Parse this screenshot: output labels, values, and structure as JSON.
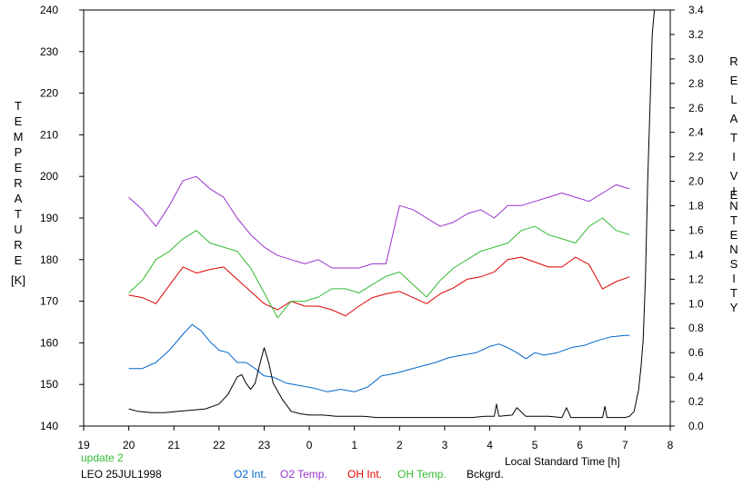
{
  "chart_data": {
    "type": "line",
    "left_axis": {
      "label_letters": [
        "T",
        "E",
        "M",
        "P",
        "E",
        "R",
        "A",
        "T",
        "U",
        "R",
        "E"
      ],
      "unit": "[K]",
      "range": [
        140,
        240
      ],
      "ticks": [
        "240",
        "230",
        "220",
        "210",
        "200",
        "190",
        "180",
        "170",
        "160",
        "150",
        "140"
      ]
    },
    "right_axis": {
      "label1_letters": [
        "R",
        "E",
        "L",
        "A",
        "T",
        "I",
        "V",
        "E"
      ],
      "label2_letters": [
        "I",
        "N",
        "T",
        "E",
        "N",
        "S",
        "I",
        "T",
        "Y"
      ],
      "range": [
        0,
        3.4
      ],
      "ticks": [
        "3.4",
        "3.2",
        "3.0",
        "2.8",
        "2.6",
        "2.4",
        "2.2",
        "2.0",
        "1.8",
        "1.6",
        "1.4",
        "1.2",
        "1.0",
        "0.8",
        "0.6",
        "0.4",
        "0.2",
        "0.0"
      ]
    },
    "x_axis": {
      "label": "Local Standard Time [h]",
      "range": [
        19,
        32
      ],
      "ticks": [
        "19",
        "20",
        "21",
        "22",
        "23",
        "0",
        "1",
        "2",
        "3",
        "4",
        "5",
        "6",
        "7",
        "8"
      ]
    },
    "update_text": "update 2",
    "station_text": "LEO 25JUL1998",
    "series": [
      {
        "name": "O2 Int.",
        "axis": "right",
        "color": "#0066cc",
        "x": [
          20.0,
          20.3,
          20.6,
          20.9,
          21.2,
          21.4,
          21.6,
          21.8,
          22.0,
          22.2,
          22.4,
          22.6,
          22.8,
          23.0,
          23.2,
          23.5,
          23.8,
          24.1,
          24.4,
          24.7,
          25.0,
          25.3,
          25.6,
          25.9,
          26.2,
          26.5,
          26.8,
          27.1,
          27.4,
          27.7,
          28.0,
          28.2,
          28.4,
          28.6,
          28.8,
          29.0,
          29.2,
          29.5,
          29.8,
          30.1,
          30.4,
          30.7,
          31.0,
          31.1
        ],
        "y": [
          0.47,
          0.47,
          0.52,
          0.62,
          0.75,
          0.83,
          0.78,
          0.69,
          0.62,
          0.6,
          0.52,
          0.52,
          0.47,
          0.41,
          0.4,
          0.35,
          0.33,
          0.31,
          0.28,
          0.3,
          0.28,
          0.32,
          0.41,
          0.43,
          0.46,
          0.49,
          0.52,
          0.56,
          0.58,
          0.6,
          0.65,
          0.67,
          0.64,
          0.6,
          0.55,
          0.6,
          0.58,
          0.6,
          0.64,
          0.66,
          0.7,
          0.73,
          0.74,
          0.74
        ]
      },
      {
        "name": "O2 Temp.",
        "axis": "left",
        "color": "#9933cc",
        "x": [
          20.0,
          20.3,
          20.6,
          20.9,
          21.2,
          21.5,
          21.8,
          22.1,
          22.4,
          22.7,
          23.0,
          23.3,
          23.6,
          23.9,
          24.2,
          24.5,
          24.8,
          25.1,
          25.4,
          25.7,
          26.0,
          26.3,
          26.6,
          26.9,
          27.2,
          27.5,
          27.8,
          28.1,
          28.4,
          28.7,
          29.0,
          29.3,
          29.6,
          29.9,
          30.2,
          30.5,
          30.8,
          31.1
        ],
        "y": [
          195,
          192,
          188,
          193,
          199,
          200,
          197,
          195,
          190,
          186,
          183,
          181,
          180,
          179,
          180,
          178,
          178,
          178,
          179,
          179,
          193,
          192,
          190,
          188,
          189,
          191,
          192,
          190,
          193,
          193,
          194,
          195,
          196,
          195,
          194,
          196,
          198,
          197
        ]
      },
      {
        "name": "OH Int.",
        "axis": "right",
        "color": "#dd0000",
        "x": [
          20.0,
          20.3,
          20.6,
          20.9,
          21.2,
          21.5,
          21.8,
          22.1,
          22.4,
          22.7,
          23.0,
          23.3,
          23.6,
          23.9,
          24.2,
          24.5,
          24.8,
          25.1,
          25.4,
          25.7,
          26.0,
          26.3,
          26.6,
          26.9,
          27.2,
          27.5,
          27.8,
          28.1,
          28.4,
          28.7,
          29.0,
          29.3,
          29.6,
          29.9,
          30.2,
          30.5,
          30.8,
          31.1
        ],
        "y": [
          1.07,
          1.05,
          1.0,
          1.15,
          1.3,
          1.25,
          1.28,
          1.3,
          1.2,
          1.1,
          1.0,
          0.95,
          1.02,
          0.98,
          0.98,
          0.95,
          0.9,
          0.98,
          1.05,
          1.08,
          1.1,
          1.05,
          1.0,
          1.08,
          1.13,
          1.2,
          1.22,
          1.26,
          1.36,
          1.38,
          1.34,
          1.3,
          1.3,
          1.38,
          1.32,
          1.12,
          1.18,
          1.22
        ]
      },
      {
        "name": "OH Temp.",
        "axis": "left",
        "color": "#33bb33",
        "x": [
          20.0,
          20.3,
          20.6,
          20.9,
          21.2,
          21.5,
          21.8,
          22.1,
          22.4,
          22.7,
          23.0,
          23.3,
          23.6,
          23.9,
          24.2,
          24.5,
          24.8,
          25.1,
          25.4,
          25.7,
          26.0,
          26.3,
          26.6,
          26.9,
          27.2,
          27.5,
          27.8,
          28.1,
          28.4,
          28.7,
          29.0,
          29.3,
          29.6,
          29.9,
          30.2,
          30.5,
          30.8,
          31.1
        ],
        "y": [
          172,
          175,
          180,
          182,
          185,
          187,
          184,
          183,
          182,
          178,
          172,
          166,
          170,
          170,
          171,
          173,
          173,
          172,
          174,
          176,
          177,
          174,
          171,
          175,
          178,
          180,
          182,
          183,
          184,
          187,
          188,
          186,
          185,
          184,
          188,
          190,
          187,
          186
        ]
      },
      {
        "name": "Bckgrd.",
        "axis": "right",
        "color": "#000000",
        "x": [
          20.0,
          20.2,
          20.5,
          20.8,
          21.1,
          21.4,
          21.7,
          22.0,
          22.2,
          22.4,
          22.5,
          22.6,
          22.7,
          22.8,
          22.9,
          23.0,
          23.1,
          23.2,
          23.4,
          23.6,
          23.8,
          24.0,
          24.3,
          24.6,
          24.9,
          25.2,
          25.5,
          25.8,
          26.1,
          26.4,
          26.7,
          27.0,
          27.3,
          27.6,
          27.9,
          28.1,
          28.15,
          28.2,
          28.5,
          28.6,
          28.8,
          29.0,
          29.3,
          29.6,
          29.7,
          29.8,
          30.0,
          30.3,
          30.5,
          30.55,
          30.6,
          30.8,
          31.0,
          31.1,
          31.2,
          31.3,
          31.35,
          31.4,
          31.45,
          31.5,
          31.55,
          31.6,
          31.65
        ],
        "y": [
          0.14,
          0.12,
          0.11,
          0.11,
          0.12,
          0.13,
          0.14,
          0.18,
          0.26,
          0.4,
          0.42,
          0.35,
          0.3,
          0.35,
          0.5,
          0.64,
          0.52,
          0.35,
          0.22,
          0.12,
          0.1,
          0.09,
          0.09,
          0.08,
          0.08,
          0.08,
          0.07,
          0.07,
          0.07,
          0.07,
          0.07,
          0.07,
          0.07,
          0.07,
          0.08,
          0.08,
          0.18,
          0.08,
          0.09,
          0.15,
          0.08,
          0.08,
          0.08,
          0.07,
          0.15,
          0.07,
          0.07,
          0.07,
          0.07,
          0.16,
          0.07,
          0.07,
          0.07,
          0.08,
          0.12,
          0.3,
          0.48,
          0.7,
          1.2,
          2.0,
          2.6,
          3.2,
          3.4
        ]
      }
    ]
  }
}
